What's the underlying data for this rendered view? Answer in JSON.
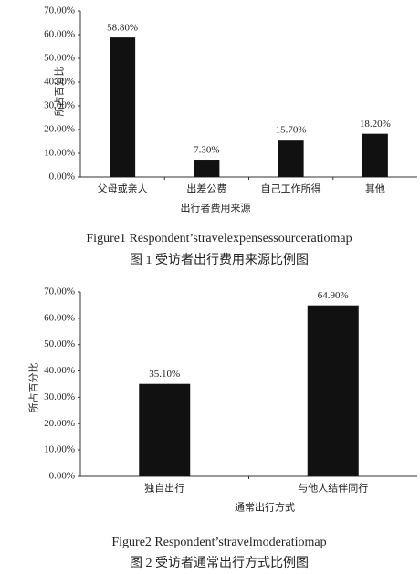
{
  "chart_data": [
    {
      "type": "bar",
      "x_label": "出行者费用来源",
      "y_label": "所占百分比",
      "categories": [
        "父母或亲人",
        "出差公费",
        "自己工作所得",
        "其他"
      ],
      "values": [
        58.8,
        7.3,
        15.7,
        18.2
      ],
      "value_labels": [
        "58.80%",
        "7.30%",
        "15.70%",
        "18.20%"
      ],
      "color": "#111111",
      "ylim": [
        0,
        70
      ],
      "yticks": [
        {
          "value": 0,
          "label": "0.00%"
        },
        {
          "value": 10,
          "label": "10.00%"
        },
        {
          "value": 20,
          "label": "20.00%"
        },
        {
          "value": 30,
          "label": "30.00%"
        },
        {
          "value": 40,
          "label": "40.00%"
        },
        {
          "value": 50,
          "label": "50.00%"
        },
        {
          "value": 60,
          "label": "60.00%"
        },
        {
          "value": 70,
          "label": "70.00%"
        }
      ],
      "grid": false,
      "caption": [
        "Figure1 Respondent’stravelexpensessourceratiomap",
        "图 1  受访者出行费用来源比例图"
      ]
    },
    {
      "type": "bar",
      "x_label": "通常出行方式",
      "y_label": "所占百分比",
      "categories": [
        "独自出行",
        "与他人结伴同行"
      ],
      "values": [
        35.1,
        64.9
      ],
      "value_labels": [
        "35.10%",
        "64.90%"
      ],
      "color": "#111111",
      "ylim": [
        0,
        70
      ],
      "yticks": [
        {
          "value": 0,
          "label": "0.00%"
        },
        {
          "value": 10,
          "label": "10.00%"
        },
        {
          "value": 20,
          "label": "20.00%"
        },
        {
          "value": 30,
          "label": "30.00%"
        },
        {
          "value": 40,
          "label": "40.00%"
        },
        {
          "value": 50,
          "label": "50.00%"
        },
        {
          "value": 60,
          "label": "60.00%"
        },
        {
          "value": 70,
          "label": "70.00%"
        }
      ],
      "grid": false,
      "caption": [
        "Figure2 Respondent’stravelmoderatiomap",
        "图 2  受访者通常出行方式比例图"
      ]
    }
  ]
}
